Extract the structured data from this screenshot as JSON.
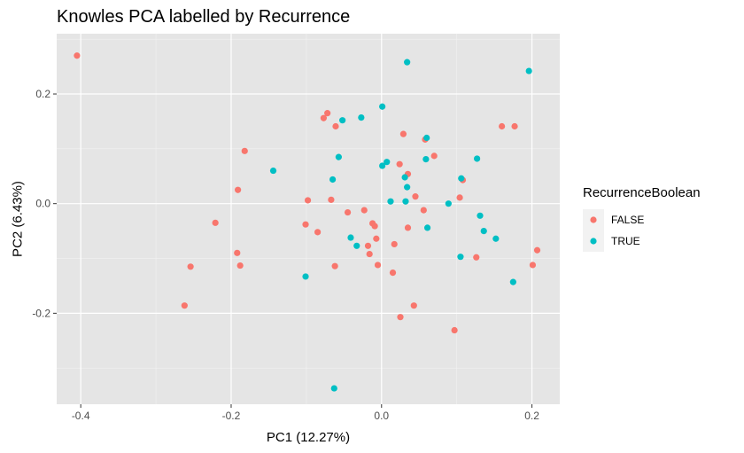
{
  "chart_data": {
    "type": "scatter",
    "title": "Knowles PCA labelled by Recurrence",
    "xlabel": "PC1 (12.27%)",
    "ylabel": "PC2 (6.43%)",
    "xlim": [
      -0.432,
      0.237
    ],
    "ylim": [
      -0.366,
      0.31
    ],
    "x_ticks": [
      -0.4,
      -0.2,
      0.0,
      0.2
    ],
    "x_tick_labels": [
      "-0.4",
      "-0.2",
      "0.0",
      "0.2"
    ],
    "y_ticks": [
      -0.2,
      0.0,
      0.2
    ],
    "y_tick_labels": [
      "-0.2",
      "0.0",
      "0.2"
    ],
    "grid": true,
    "panel_background": "#e5e5e5",
    "legend": {
      "title": "RecurrenceBoolean",
      "placement": "right",
      "entries": [
        {
          "label": "FALSE",
          "color": "#f8766d"
        },
        {
          "label": "TRUE",
          "color": "#00bfc4"
        }
      ]
    },
    "series": [
      {
        "name": "FALSE",
        "color": "#f8766d",
        "points": [
          {
            "x": -0.405,
            "y": 0.27
          },
          {
            "x": -0.072,
            "y": 0.165
          },
          {
            "x": -0.077,
            "y": 0.156
          },
          {
            "x": -0.061,
            "y": 0.141
          },
          {
            "x": -0.182,
            "y": 0.096
          },
          {
            "x": -0.191,
            "y": 0.025
          },
          {
            "x": -0.221,
            "y": -0.035
          },
          {
            "x": -0.192,
            "y": -0.09
          },
          {
            "x": -0.254,
            "y": -0.115
          },
          {
            "x": -0.188,
            "y": -0.113
          },
          {
            "x": -0.262,
            "y": -0.186
          },
          {
            "x": -0.098,
            "y": 0.006
          },
          {
            "x": -0.067,
            "y": 0.007
          },
          {
            "x": -0.101,
            "y": -0.038
          },
          {
            "x": -0.085,
            "y": -0.052
          },
          {
            "x": -0.045,
            "y": -0.016
          },
          {
            "x": -0.023,
            "y": -0.012
          },
          {
            "x": -0.012,
            "y": -0.036
          },
          {
            "x": -0.009,
            "y": -0.041
          },
          {
            "x": -0.018,
            "y": -0.077
          },
          {
            "x": -0.016,
            "y": -0.092
          },
          {
            "x": -0.007,
            "y": -0.064
          },
          {
            "x": -0.005,
            "y": -0.112
          },
          {
            "x": -0.062,
            "y": -0.114
          },
          {
            "x": 0.029,
            "y": 0.127
          },
          {
            "x": 0.024,
            "y": 0.072
          },
          {
            "x": 0.035,
            "y": 0.054
          },
          {
            "x": 0.058,
            "y": 0.117
          },
          {
            "x": 0.07,
            "y": 0.087
          },
          {
            "x": 0.045,
            "y": 0.013
          },
          {
            "x": 0.056,
            "y": -0.012
          },
          {
            "x": 0.035,
            "y": -0.044
          },
          {
            "x": 0.017,
            "y": -0.074
          },
          {
            "x": 0.015,
            "y": -0.126
          },
          {
            "x": 0.043,
            "y": -0.186
          },
          {
            "x": 0.025,
            "y": -0.207
          },
          {
            "x": 0.097,
            "y": -0.231
          },
          {
            "x": 0.108,
            "y": 0.043
          },
          {
            "x": 0.104,
            "y": 0.011
          },
          {
            "x": 0.16,
            "y": 0.141
          },
          {
            "x": 0.177,
            "y": 0.141
          },
          {
            "x": 0.126,
            "y": -0.098
          },
          {
            "x": 0.207,
            "y": -0.085
          },
          {
            "x": 0.201,
            "y": -0.112
          }
        ]
      },
      {
        "name": "TRUE",
        "color": "#00bfc4",
        "points": [
          {
            "x": 0.034,
            "y": 0.258
          },
          {
            "x": 0.196,
            "y": 0.242
          },
          {
            "x": 0.001,
            "y": 0.177
          },
          {
            "x": -0.052,
            "y": 0.152
          },
          {
            "x": -0.027,
            "y": 0.157
          },
          {
            "x": 0.06,
            "y": 0.12
          },
          {
            "x": -0.144,
            "y": 0.06
          },
          {
            "x": -0.057,
            "y": 0.085
          },
          {
            "x": -0.065,
            "y": 0.044
          },
          {
            "x": 0.007,
            "y": 0.076
          },
          {
            "x": 0.001,
            "y": 0.069
          },
          {
            "x": 0.059,
            "y": 0.081
          },
          {
            "x": 0.127,
            "y": 0.082
          },
          {
            "x": 0.106,
            "y": 0.046
          },
          {
            "x": 0.031,
            "y": 0.048
          },
          {
            "x": 0.034,
            "y": 0.03
          },
          {
            "x": 0.012,
            "y": 0.004
          },
          {
            "x": 0.032,
            "y": 0.004
          },
          {
            "x": 0.089,
            "y": 0.0
          },
          {
            "x": 0.131,
            "y": -0.022
          },
          {
            "x": 0.061,
            "y": -0.044
          },
          {
            "x": 0.136,
            "y": -0.05
          },
          {
            "x": 0.152,
            "y": -0.064
          },
          {
            "x": -0.041,
            "y": -0.062
          },
          {
            "x": -0.033,
            "y": -0.077
          },
          {
            "x": 0.105,
            "y": -0.097
          },
          {
            "x": -0.101,
            "y": -0.133
          },
          {
            "x": 0.175,
            "y": -0.143
          },
          {
            "x": -0.063,
            "y": -0.337
          }
        ]
      }
    ]
  }
}
